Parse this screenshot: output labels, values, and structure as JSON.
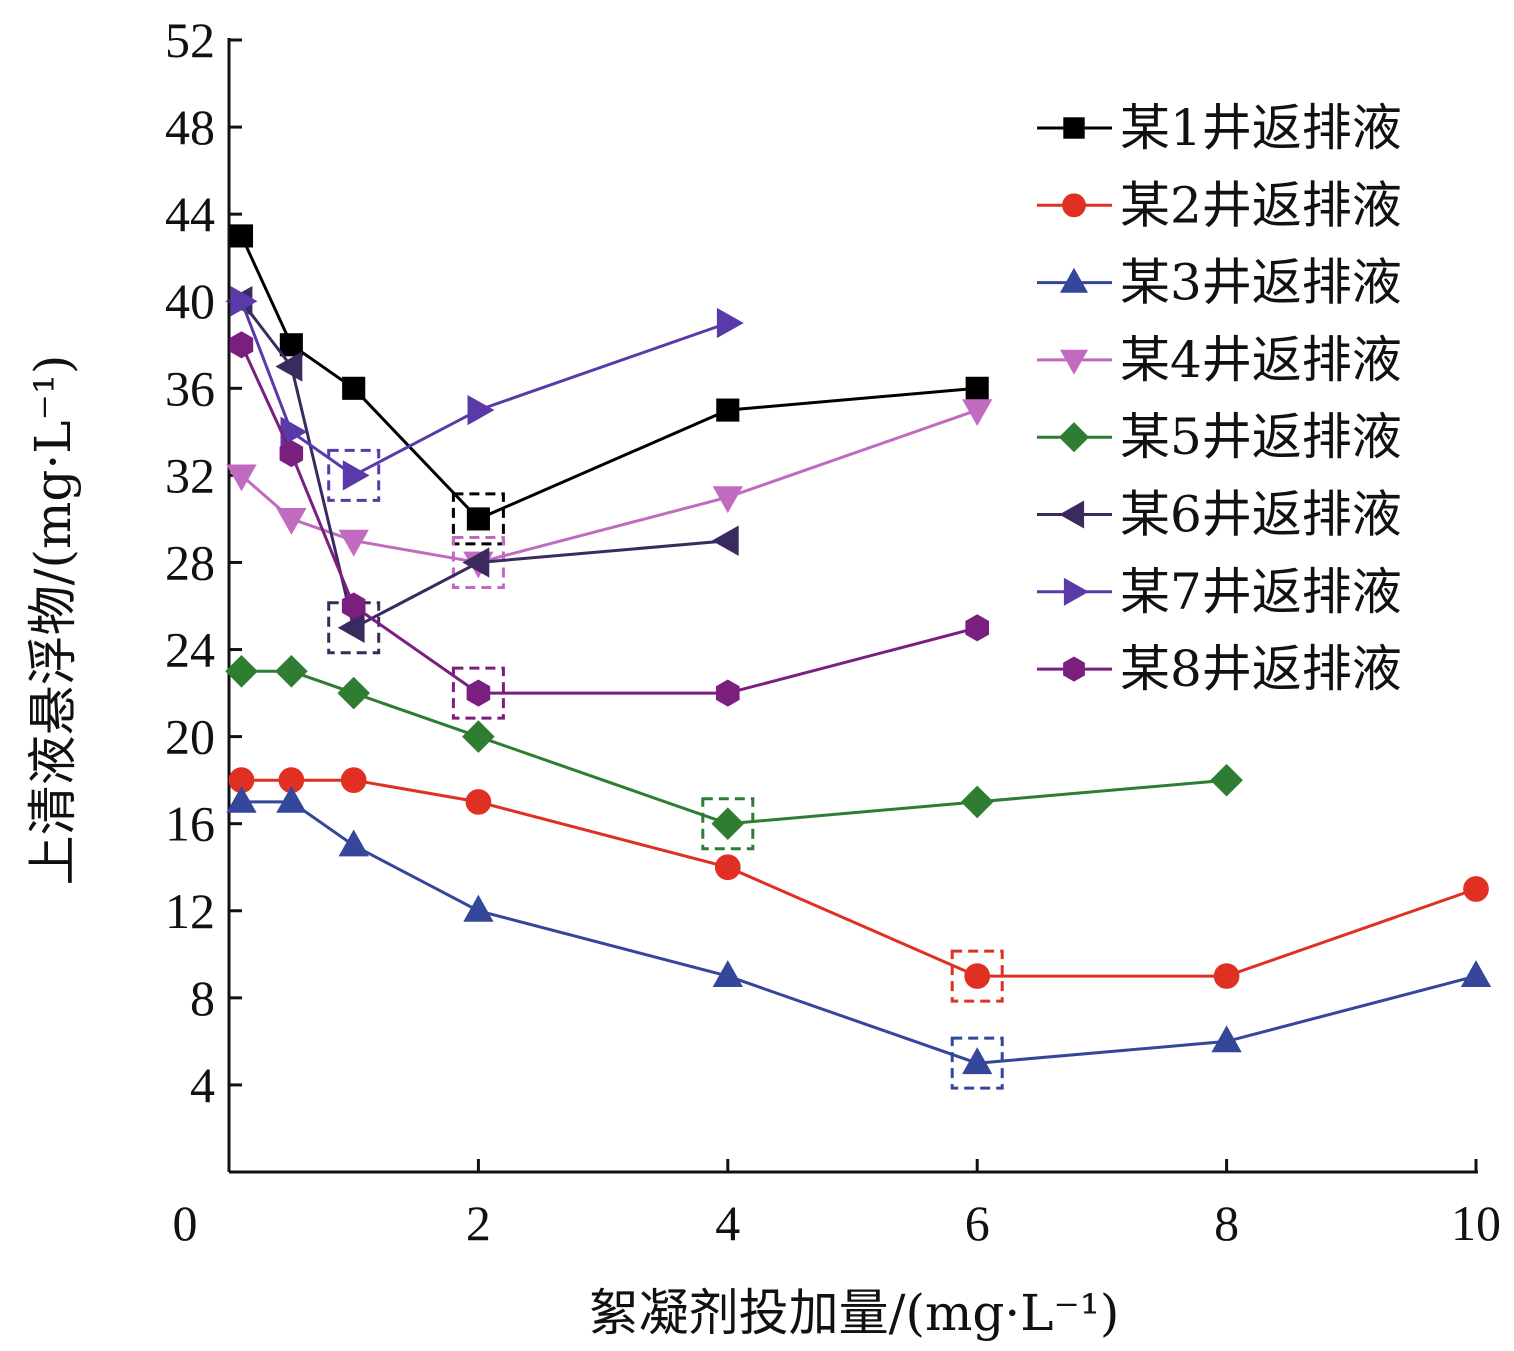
{
  "chart_data": {
    "type": "line",
    "title": "",
    "xlabel": "絮凝剂投加量/(mg·L⁻¹)",
    "ylabel": "上清液悬浮物/(mg·L⁻¹)",
    "xlim": [
      0,
      10
    ],
    "ylim": [
      0,
      52
    ],
    "x_ticks": [
      0,
      2,
      4,
      6,
      8,
      10
    ],
    "y_ticks": [
      4,
      8,
      12,
      16,
      20,
      24,
      28,
      32,
      36,
      40,
      44,
      48,
      52
    ],
    "grid": false,
    "legend_position": "top-right",
    "series": [
      {
        "name": "某1井返排液",
        "color": "#000000",
        "marker": "square",
        "x": [
          0.1,
          0.5,
          1,
          2,
          4,
          6
        ],
        "y": [
          43,
          38,
          36,
          30,
          35,
          36
        ],
        "optimum_index": 3
      },
      {
        "name": "某2井返排液",
        "color": "#e03024",
        "marker": "circle",
        "x": [
          0.1,
          0.5,
          1,
          2,
          4,
          6,
          8,
          10
        ],
        "y": [
          18,
          18,
          18,
          17,
          14,
          9,
          9,
          13
        ],
        "optimum_index": 5
      },
      {
        "name": "某3井返排液",
        "color": "#34479a",
        "marker": "triangle-up",
        "x": [
          0.1,
          0.5,
          1,
          2,
          4,
          6,
          8,
          10
        ],
        "y": [
          17,
          17,
          15,
          12,
          9,
          5,
          6,
          9
        ],
        "optimum_index": 5
      },
      {
        "name": "某4井返排液",
        "color": "#c06ac0",
        "marker": "triangle-down",
        "x": [
          0.1,
          0.5,
          1,
          2,
          4,
          6
        ],
        "y": [
          32,
          30,
          29,
          28,
          31,
          35
        ],
        "optimum_index": 3
      },
      {
        "name": "某5井返排液",
        "color": "#2e7d32",
        "marker": "diamond",
        "x": [
          0.1,
          0.5,
          1,
          2,
          4,
          6,
          8
        ],
        "y": [
          23,
          23,
          22,
          20,
          16,
          17,
          18
        ],
        "optimum_index": 4
      },
      {
        "name": "某6井返排液",
        "color": "#3b2a5e",
        "marker": "triangle-left",
        "x": [
          0.1,
          0.5,
          1,
          2,
          4
        ],
        "y": [
          40,
          37,
          25,
          28,
          29
        ],
        "optimum_index": 2
      },
      {
        "name": "某7井返排液",
        "color": "#5a3aa8",
        "marker": "triangle-right",
        "x": [
          0.1,
          0.5,
          1,
          2,
          4
        ],
        "y": [
          40,
          34,
          32,
          35,
          39
        ],
        "optimum_index": 2
      },
      {
        "name": "某8井返排液",
        "color": "#7b1f7f",
        "marker": "hexagon",
        "x": [
          0.1,
          0.5,
          1,
          2,
          4,
          6
        ],
        "y": [
          38,
          33,
          26,
          22,
          22,
          25
        ],
        "optimum_index": 3
      }
    ]
  }
}
